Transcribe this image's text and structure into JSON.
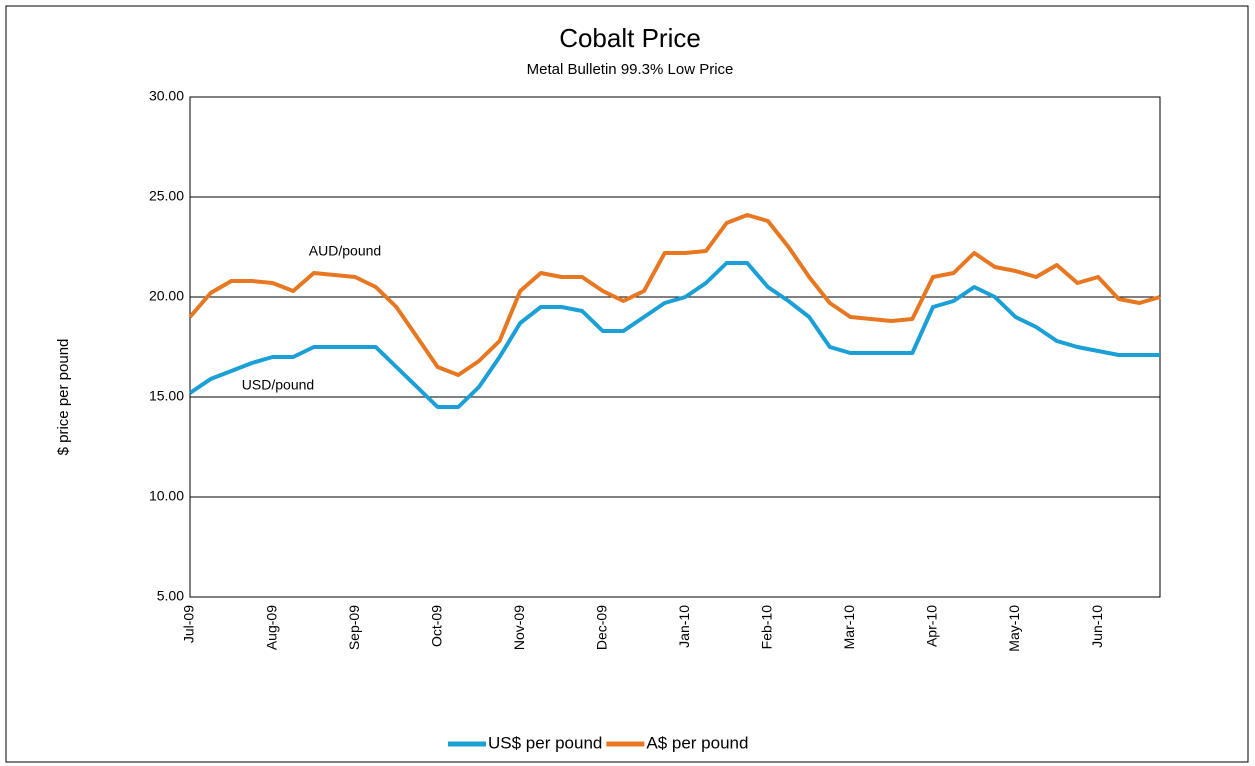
{
  "chart_data": {
    "type": "line",
    "title": "Cobalt Price",
    "subtitle": "Metal Bulletin 99.3% Low Price",
    "y_label": "$ price per pound",
    "annotations": [
      "AUD/pound",
      "USD/pound"
    ],
    "categories": [
      "Jul-09",
      null,
      null,
      null,
      "Aug-09",
      null,
      null,
      null,
      "Sep-09",
      null,
      null,
      null,
      "Oct-09",
      null,
      null,
      null,
      "Nov-09",
      null,
      null,
      null,
      "Dec-09",
      null,
      null,
      null,
      "Jan-10",
      null,
      null,
      null,
      "Feb-10",
      null,
      null,
      null,
      "Mar-10",
      null,
      null,
      null,
      "Apr-10",
      null,
      null,
      null,
      "May-10",
      null,
      null,
      null,
      "Jun-10",
      null,
      null,
      null
    ],
    "series": [
      {
        "name": "US$ per pound",
        "color": "#1a9fd6",
        "values": [
          15.2,
          15.9,
          16.3,
          16.7,
          17.0,
          17.0,
          17.5,
          17.5,
          17.5,
          17.5,
          16.5,
          15.5,
          14.5,
          14.5,
          15.5,
          17.0,
          18.7,
          19.5,
          19.5,
          19.3,
          18.3,
          18.3,
          19.0,
          19.7,
          20.0,
          20.7,
          21.7,
          21.7,
          20.5,
          19.8,
          19.0,
          17.5,
          17.2,
          17.2,
          17.2,
          17.2,
          19.5,
          19.8,
          20.5,
          20.0,
          19.0,
          18.5,
          17.8,
          17.5,
          17.3,
          17.1,
          17.1,
          17.1
        ]
      },
      {
        "name": "A$ per pound",
        "color": "#e87722",
        "values": [
          19.0,
          20.2,
          20.8,
          20.8,
          20.7,
          20.3,
          21.2,
          21.1,
          21.0,
          20.5,
          19.5,
          18.0,
          16.5,
          16.1,
          16.8,
          17.8,
          20.3,
          21.2,
          21.0,
          21.0,
          20.3,
          19.8,
          20.3,
          22.2,
          22.2,
          22.3,
          23.7,
          24.1,
          23.8,
          22.5,
          21.0,
          19.7,
          19.0,
          18.9,
          18.8,
          18.9,
          21.0,
          21.2,
          22.2,
          21.5,
          21.3,
          21.0,
          21.6,
          20.7,
          21.0,
          19.9,
          19.7,
          20.0
        ]
      }
    ],
    "ylim": [
      5,
      30
    ],
    "yticks": [
      {
        "value": 5,
        "label": "5.00"
      },
      {
        "value": 10,
        "label": "10.00"
      },
      {
        "value": 15,
        "label": "15.00"
      },
      {
        "value": 20,
        "label": "20.00"
      },
      {
        "value": 25,
        "label": "25.00"
      },
      {
        "value": 30,
        "label": "30.00"
      }
    ],
    "grid": true,
    "legend": "bottom"
  }
}
